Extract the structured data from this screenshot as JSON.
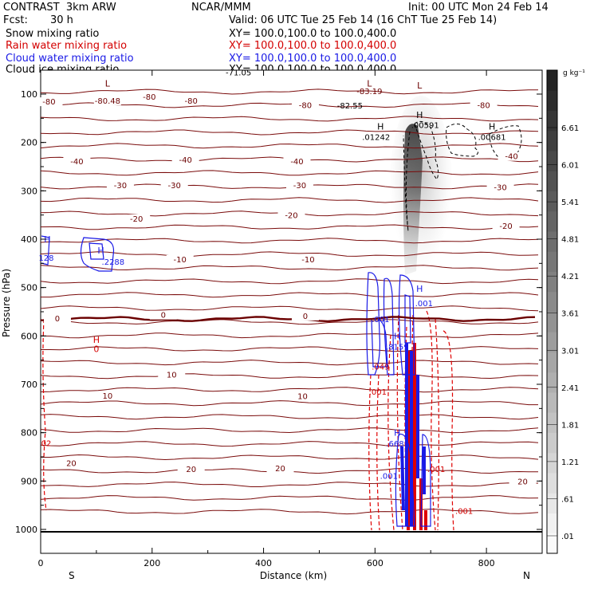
{
  "header": {
    "model": "CONTRAST  3km ARW",
    "org": "NCAR/MMM",
    "init": "Init: 00 UTC Mon 24 Feb 14",
    "fcst_label": "Fcst:",
    "fcst_value": "30 h",
    "valid": "Valid: 06 UTC Tue 25 Feb 14 (16 ChT Tue 25 Feb 14)"
  },
  "fields": [
    {
      "label": "Snow mixing ratio",
      "xy": "XY= 100.0,100.0 to 100.0,400.0",
      "color": "#000000"
    },
    {
      "label": "Rain water mixing ratio",
      "xy": "XY= 100.0,100.0 to 100.0,400.0",
      "color": "#d40000"
    },
    {
      "label": "Cloud water mixing ratio",
      "xy": "XY= 100.0,100.0 to 100.0,400.0",
      "color": "#1a1ae6"
    },
    {
      "label": "Cloud ice mixing ratio",
      "xy": "XY= 100.0,100.0 to 100.0,400.0",
      "color": "#000000"
    }
  ],
  "chart_data": {
    "type": "contour",
    "xlabel": "Distance (km)",
    "ylabel": "Pressure (hPa)",
    "x_ticks": [
      0,
      200,
      400,
      600,
      800
    ],
    "x_range": [
      0,
      900
    ],
    "y_ticks": [
      100,
      200,
      300,
      400,
      500,
      600,
      700,
      800,
      900,
      1000
    ],
    "y_range": [
      50,
      1050
    ],
    "x_end_labels": {
      "left": "S",
      "right": "N"
    },
    "colorbar": {
      "units": "g kg⁻¹",
      "ticks": [
        ".01",
        ".61",
        "1.21",
        "1.81",
        "2.41",
        "3.01",
        "3.61",
        "4.21",
        "4.81",
        "5.41",
        "6.01",
        "6.61"
      ]
    },
    "temperature_contour_labels": [
      {
        "x": 15,
        "p": 120,
        "text": "-80"
      },
      {
        "x": 120,
        "p": 118,
        "text": "-80.48"
      },
      {
        "x": 195,
        "p": 110,
        "text": "-80"
      },
      {
        "x": 270,
        "p": 118,
        "text": "-80"
      },
      {
        "x": 475,
        "p": 127,
        "text": "-80"
      },
      {
        "x": 795,
        "p": 127,
        "text": "-80"
      },
      {
        "x": 65,
        "p": 243,
        "text": "-40"
      },
      {
        "x": 260,
        "p": 240,
        "text": "-40"
      },
      {
        "x": 460,
        "p": 243,
        "text": "-40"
      },
      {
        "x": 845,
        "p": 233,
        "text": "-40"
      },
      {
        "x": 143,
        "p": 293,
        "text": "-30"
      },
      {
        "x": 240,
        "p": 293,
        "text": "-30"
      },
      {
        "x": 465,
        "p": 293,
        "text": "-30"
      },
      {
        "x": 825,
        "p": 297,
        "text": "-30"
      },
      {
        "x": 172,
        "p": 362,
        "text": "-20"
      },
      {
        "x": 450,
        "p": 355,
        "text": "-20"
      },
      {
        "x": 835,
        "p": 377,
        "text": "-20"
      },
      {
        "x": 250,
        "p": 446,
        "text": "-10"
      },
      {
        "x": 480,
        "p": 446,
        "text": "-10"
      },
      {
        "x": 30,
        "p": 568,
        "text": "0"
      },
      {
        "x": 220,
        "p": 561,
        "text": "0"
      },
      {
        "x": 475,
        "p": 563,
        "text": "0"
      },
      {
        "x": 235,
        "p": 684,
        "text": "10"
      },
      {
        "x": 120,
        "p": 728,
        "text": "10"
      },
      {
        "x": 470,
        "p": 729,
        "text": "10"
      },
      {
        "x": 55,
        "p": 867,
        "text": "20"
      },
      {
        "x": 270,
        "p": 880,
        "text": "20"
      },
      {
        "x": 430,
        "p": 878,
        "text": "20"
      },
      {
        "x": 865,
        "p": 905,
        "text": "20"
      }
    ],
    "special_labels": [
      {
        "x": 355,
        "p": 60,
        "text": "-71.05",
        "color": "#000000"
      },
      {
        "x": 555,
        "p": 128,
        "text": "-82.55",
        "color": "#000000"
      },
      {
        "x": 690,
        "p": 168,
        "text": ".00591",
        "color": "#000000"
      },
      {
        "x": 602,
        "p": 193,
        "text": ".01242",
        "color": "#000000"
      },
      {
        "x": 810,
        "p": 193,
        "text": ".00681",
        "color": "#000000"
      },
      {
        "x": 590,
        "p": 98,
        "text": "-83.19",
        "color": "#6b0000"
      },
      {
        "x": 130,
        "p": 451,
        "text": ".2288",
        "color": "#1a1ae6"
      },
      {
        "x": 10,
        "p": 443,
        "text": "128",
        "color": "#1a1ae6"
      },
      {
        "x": 610,
        "p": 570,
        "text": ".001",
        "color": "#1a1ae6"
      },
      {
        "x": 688,
        "p": 537,
        "text": ".001",
        "color": "#1a1ae6"
      },
      {
        "x": 640,
        "p": 627,
        "text": ".8159",
        "color": "#1a1ae6"
      },
      {
        "x": 636,
        "p": 827,
        "text": ".668",
        "color": "#1a1ae6"
      },
      {
        "x": 625,
        "p": 894,
        "text": ".001",
        "color": "#1a1ae6"
      },
      {
        "x": 610,
        "p": 668,
        "text": ".049",
        "color": "#d40000"
      },
      {
        "x": 605,
        "p": 720,
        "text": ".001",
        "color": "#d40000"
      },
      {
        "x": 10,
        "p": 826,
        "text": "02",
        "color": "#d40000"
      },
      {
        "x": 710,
        "p": 880,
        "text": ".001",
        "color": "#d40000"
      },
      {
        "x": 760,
        "p": 966,
        "text": ".001",
        "color": "#d40000"
      }
    ],
    "extrema_markers": [
      {
        "x": 120,
        "p": 83,
        "text": "L",
        "color": "#6b0000"
      },
      {
        "x": 590,
        "p": 83,
        "text": "L",
        "color": "#6b0000"
      },
      {
        "x": 680,
        "p": 87,
        "text": "L",
        "color": "#6b0000"
      },
      {
        "x": 680,
        "p": 148,
        "text": "H",
        "color": "#000000"
      },
      {
        "x": 610,
        "p": 172,
        "text": "H",
        "color": "#000000"
      },
      {
        "x": 810,
        "p": 172,
        "text": "H",
        "color": "#000000"
      },
      {
        "x": 12,
        "p": 405,
        "text": "H",
        "color": "#1a1ae6"
      },
      {
        "x": 108,
        "p": 428,
        "text": "H",
        "color": "#1a1ae6"
      },
      {
        "x": 680,
        "p": 507,
        "text": "H",
        "color": "#1a1ae6"
      },
      {
        "x": 640,
        "p": 605,
        "text": "H",
        "color": "#1a1ae6"
      },
      {
        "x": 640,
        "p": 805,
        "text": "H",
        "color": "#1a1ae6"
      },
      {
        "x": 100,
        "p": 613,
        "text": "H",
        "color": "#d40000"
      },
      {
        "x": 100,
        "p": 632,
        "text": "0",
        "color": "#d40000"
      }
    ]
  }
}
